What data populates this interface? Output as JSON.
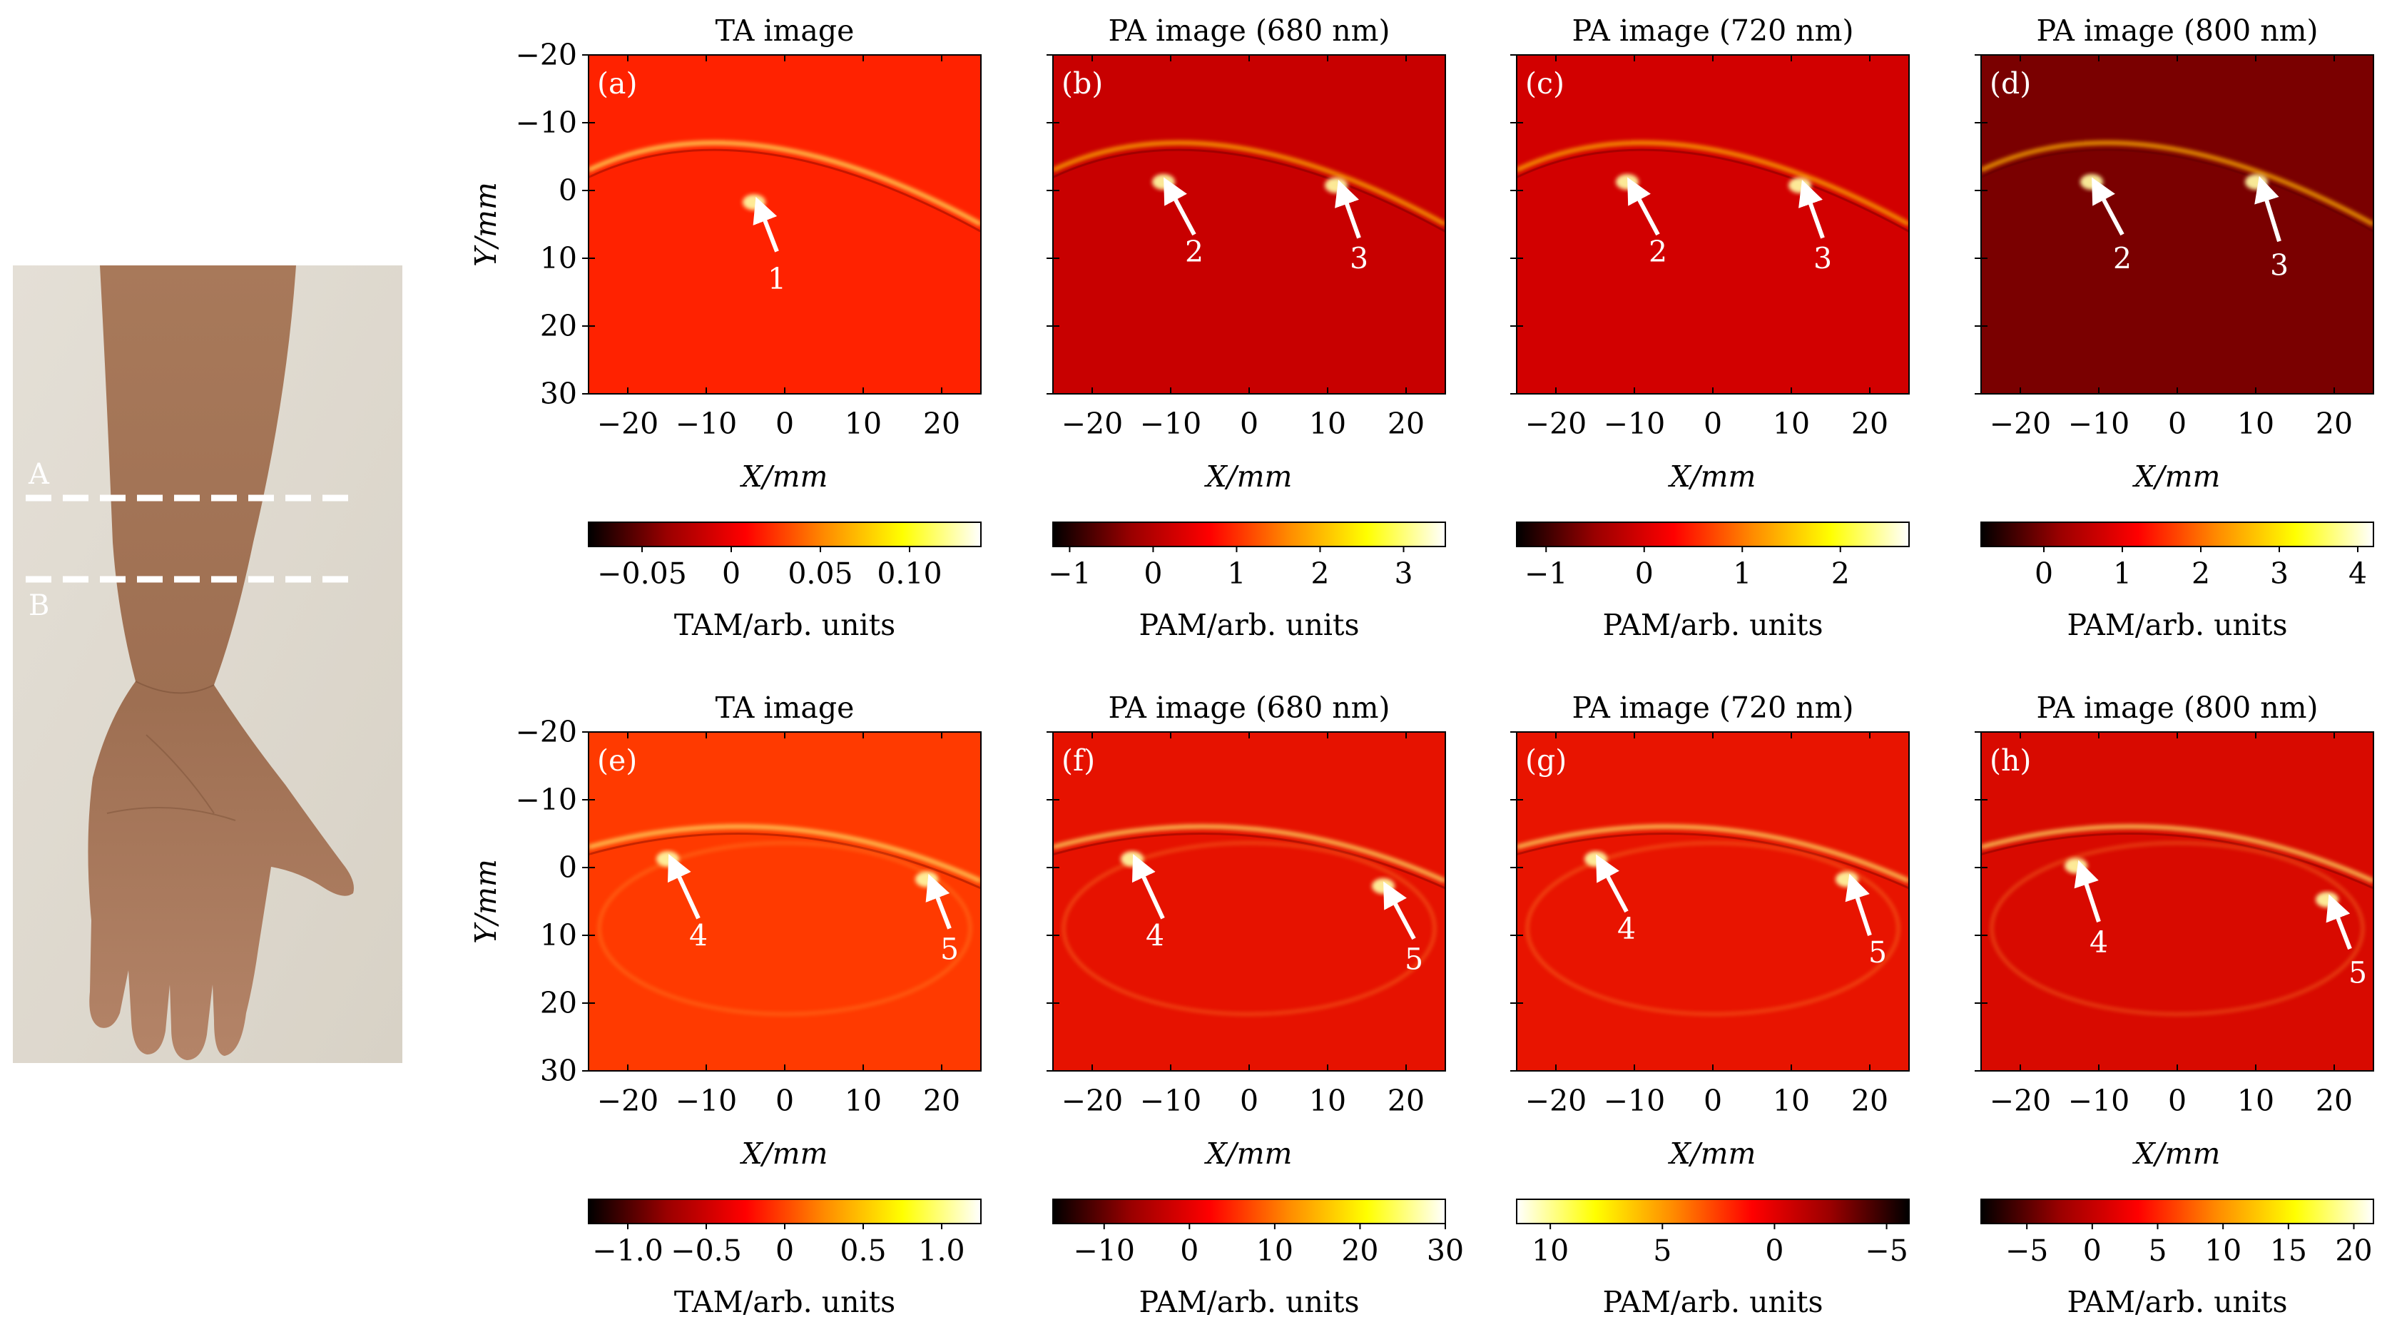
{
  "photo": {
    "line_a_label": "A",
    "line_b_label": "B"
  },
  "colormap": [
    "#000000",
    "#9a0000",
    "#ff0000",
    "#ff8a00",
    "#ffff00",
    "#ffffff"
  ],
  "axes": {
    "x_label": "X/mm",
    "y_label": "Y/mm",
    "x_ticks": [
      -20,
      -10,
      0,
      10,
      20
    ],
    "x_tick_labels": [
      "−20",
      "−10",
      "0",
      "10",
      "20"
    ],
    "y_ticks": [
      -20,
      -10,
      0,
      10,
      20,
      30
    ],
    "y_tick_labels": [
      "−20",
      "−10",
      "0",
      "10",
      "20",
      "30"
    ],
    "x_range": [
      -25,
      25
    ],
    "y_range": [
      -20,
      30
    ]
  },
  "chart_data": [
    {
      "type": "heatmap",
      "panel": "(a)",
      "title": "TA image",
      "bg": "#ff2200",
      "colorbar": {
        "label": "TAM/arb. units",
        "range": [
          -0.08,
          0.14
        ],
        "ticks": [
          -0.05,
          0,
          0.05,
          0.1
        ],
        "tick_labels": [
          "−0.05",
          "0",
          "0.05",
          "0.10"
        ]
      },
      "arrows": [
        {
          "label": "1",
          "tip": [
            -3,
            3
          ],
          "tail": [
            -1,
            9
          ],
          "text_at": [
            -1,
            14.5
          ]
        }
      ]
    },
    {
      "type": "heatmap",
      "panel": "(b)",
      "title": "PA image (680 nm)",
      "bg": "#c80000",
      "colorbar": {
        "label": "PAM/arb. units",
        "range": [
          -1.2,
          3.5
        ],
        "ticks": [
          -1,
          0,
          1,
          2,
          3
        ],
        "tick_labels": [
          "−1",
          "0",
          "1",
          "2",
          "3"
        ]
      },
      "arrows": [
        {
          "label": "2",
          "tip": [
            -10,
            0
          ],
          "tail": [
            -7,
            6.5
          ],
          "text_at": [
            -7,
            10.5
          ]
        },
        {
          "label": "3",
          "tip": [
            12,
            0.5
          ],
          "tail": [
            14,
            7
          ],
          "text_at": [
            14,
            11.5
          ]
        }
      ]
    },
    {
      "type": "heatmap",
      "panel": "(c)",
      "title": "PA image (720 nm)",
      "bg": "#d20000",
      "colorbar": {
        "label": "PAM/arb. units",
        "range": [
          -1.3,
          2.7
        ],
        "ticks": [
          -1,
          0,
          1,
          2
        ],
        "tick_labels": [
          "−1",
          "0",
          "1",
          "2"
        ]
      },
      "arrows": [
        {
          "label": "2",
          "tip": [
            -10,
            0
          ],
          "tail": [
            -7,
            6.5
          ],
          "text_at": [
            -7,
            10.5
          ]
        },
        {
          "label": "3",
          "tip": [
            12,
            0.5
          ],
          "tail": [
            14,
            7
          ],
          "text_at": [
            14,
            11.5
          ]
        }
      ]
    },
    {
      "type": "heatmap",
      "panel": "(d)",
      "title": "PA image (800 nm)",
      "bg": "#7a0000",
      "colorbar": {
        "label": "PAM/arb. units",
        "range": [
          -0.8,
          4.2
        ],
        "ticks": [
          0,
          1,
          2,
          3,
          4
        ],
        "tick_labels": [
          "0",
          "1",
          "2",
          "3",
          "4"
        ]
      },
      "arrows": [
        {
          "label": "2",
          "tip": [
            -10,
            0
          ],
          "tail": [
            -7,
            6.5
          ],
          "text_at": [
            -7,
            11.5
          ]
        },
        {
          "label": "3",
          "tip": [
            11,
            0
          ],
          "tail": [
            13,
            7.5
          ],
          "text_at": [
            13,
            12.5
          ]
        }
      ]
    },
    {
      "type": "heatmap",
      "panel": "(e)",
      "title": "TA image",
      "bg": "#ff3a00",
      "colorbar": {
        "label": "TAM/arb. units",
        "range": [
          -1.25,
          1.25
        ],
        "ticks": [
          -1.0,
          -0.5,
          0,
          0.5,
          1.0
        ],
        "tick_labels": [
          "−1.0",
          "−0.5",
          "0",
          "0.5",
          "1.0"
        ]
      },
      "arrows": [
        {
          "label": "4",
          "tip": [
            -14,
            0
          ],
          "tail": [
            -11,
            7.5
          ],
          "text_at": [
            -11,
            11.5
          ]
        },
        {
          "label": "5",
          "tip": [
            19,
            3
          ],
          "tail": [
            21,
            9
          ],
          "text_at": [
            21,
            13.5
          ]
        }
      ]
    },
    {
      "type": "heatmap",
      "panel": "(f)",
      "title": "PA image (680 nm)",
      "bg": "#e61200",
      "colorbar": {
        "label": "PAM/arb. units",
        "range": [
          -16,
          30
        ],
        "ticks": [
          -10,
          0,
          10,
          20,
          30
        ],
        "tick_labels": [
          "−10",
          "0",
          "10",
          "20",
          "30"
        ]
      },
      "arrows": [
        {
          "label": "4",
          "tip": [
            -14,
            0
          ],
          "tail": [
            -11,
            7.5
          ],
          "text_at": [
            -12,
            11.5
          ]
        },
        {
          "label": "5",
          "tip": [
            18,
            4
          ],
          "tail": [
            21,
            10.5
          ],
          "text_at": [
            21,
            15
          ]
        }
      ]
    },
    {
      "type": "heatmap",
      "panel": "(g)",
      "title": "PA image (720 nm)",
      "bg": "#e81400",
      "colorbar": {
        "label": "PAM/arb. units",
        "range": [
          11.5,
          -6
        ],
        "ticks": [
          10,
          5,
          0,
          -5
        ],
        "tick_labels": [
          "10",
          "5",
          "0",
          "−5"
        ]
      },
      "arrows": [
        {
          "label": "4",
          "tip": [
            -14,
            0
          ],
          "tail": [
            -11,
            6.5
          ],
          "text_at": [
            -11,
            10.5
          ]
        },
        {
          "label": "5",
          "tip": [
            18,
            3
          ],
          "tail": [
            20,
            10
          ],
          "text_at": [
            21,
            14
          ]
        }
      ]
    },
    {
      "type": "heatmap",
      "panel": "(h)",
      "title": "PA image (800 nm)",
      "bg": "#d80a00",
      "colorbar": {
        "label": "PAM/arb. units",
        "range": [
          -8.5,
          21.5
        ],
        "ticks": [
          -5,
          0,
          5,
          10,
          15,
          20
        ],
        "tick_labels": [
          "−5",
          "0",
          "5",
          "10",
          "15",
          "20"
        ]
      },
      "arrows": [
        {
          "label": "4",
          "tip": [
            -12,
            1
          ],
          "tail": [
            -10,
            8
          ],
          "text_at": [
            -10,
            12.5
          ]
        },
        {
          "label": "5",
          "tip": [
            20,
            6
          ],
          "tail": [
            22,
            12
          ],
          "text_at": [
            23,
            17
          ]
        }
      ]
    }
  ]
}
